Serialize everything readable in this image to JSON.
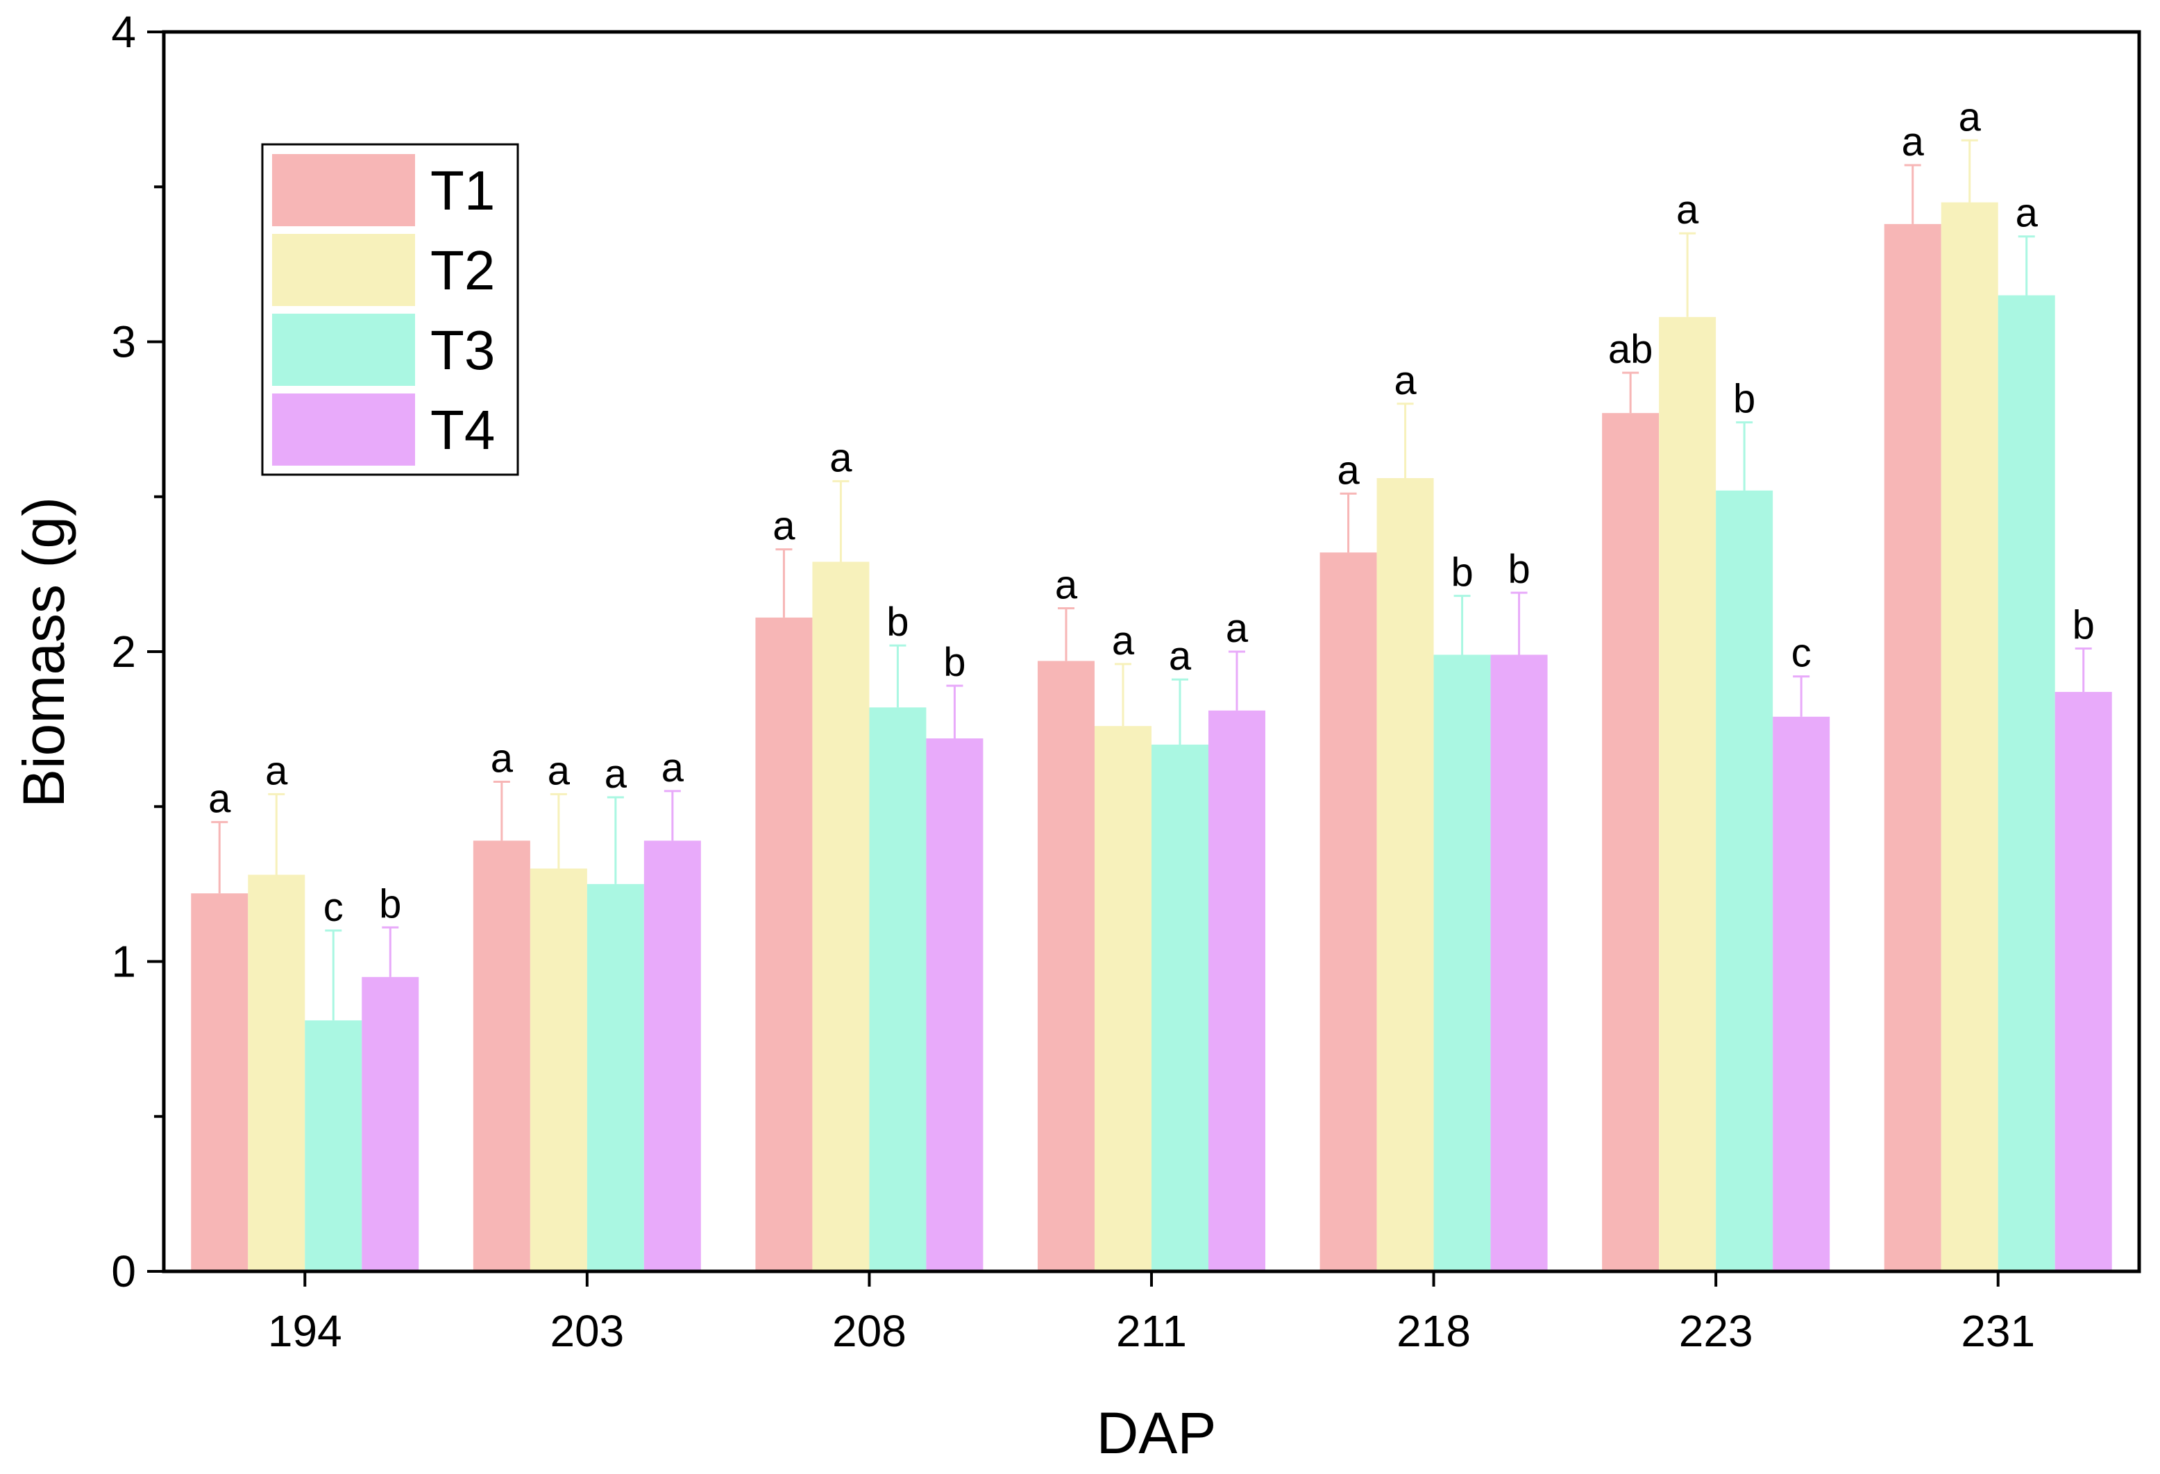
{
  "chart_data": {
    "type": "bar",
    "xlabel": "DAP",
    "ylabel": "Biomass (g)",
    "ylim": [
      0,
      4
    ],
    "yticks": [
      0,
      1,
      2,
      3,
      4
    ],
    "categories": [
      "194",
      "203",
      "208",
      "211",
      "218",
      "223",
      "231"
    ],
    "legend_position": "top-left",
    "series": [
      {
        "name": "T1",
        "color": "#f7b6b6",
        "values": [
          1.22,
          1.39,
          2.11,
          1.97,
          2.32,
          2.77,
          3.38
        ],
        "errors": [
          0.23,
          0.19,
          0.22,
          0.17,
          0.19,
          0.13,
          0.19
        ],
        "letters": [
          "a",
          "a",
          "a",
          "a",
          "a",
          "ab",
          "a"
        ]
      },
      {
        "name": "T2",
        "color": "#f7f1bb",
        "values": [
          1.28,
          1.3,
          2.29,
          1.76,
          2.56,
          3.08,
          3.45
        ],
        "errors": [
          0.26,
          0.24,
          0.26,
          0.2,
          0.24,
          0.27,
          0.2
        ],
        "letters": [
          "a",
          "a",
          "a",
          "a",
          "a",
          "a",
          "a"
        ]
      },
      {
        "name": "T3",
        "color": "#aaf7e2",
        "values": [
          0.81,
          1.25,
          1.82,
          1.7,
          1.99,
          2.52,
          3.15
        ],
        "errors": [
          0.29,
          0.28,
          0.2,
          0.21,
          0.19,
          0.22,
          0.19
        ],
        "letters": [
          "c",
          "a",
          "b",
          "a",
          "b",
          "b",
          "a"
        ]
      },
      {
        "name": "T4",
        "color": "#e8aafa",
        "values": [
          0.95,
          1.39,
          1.72,
          1.81,
          1.99,
          1.79,
          1.87
        ],
        "errors": [
          0.16,
          0.16,
          0.17,
          0.19,
          0.2,
          0.13,
          0.14
        ],
        "letters": [
          "b",
          "a",
          "b",
          "a",
          "b",
          "c",
          "b"
        ]
      }
    ]
  }
}
